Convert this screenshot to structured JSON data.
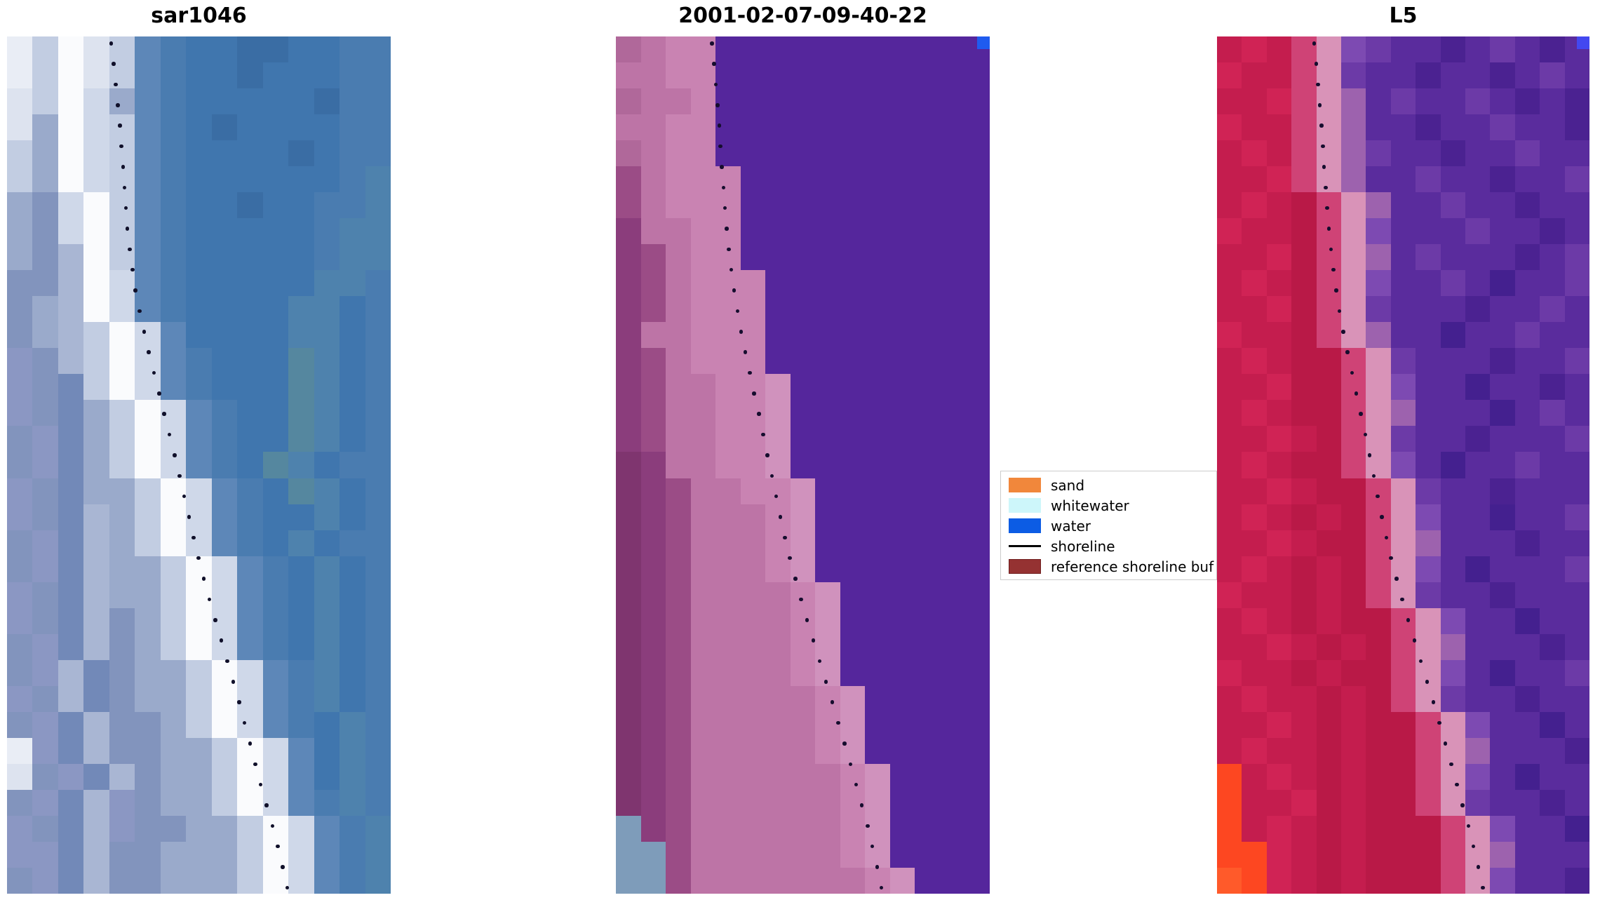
{
  "panels": [
    {
      "title": "sar1046",
      "cols": 15,
      "rows": 33,
      "palette": {
        "A": "#e9edf5",
        "B": "#dde3ef",
        "C": "#fafbfd",
        "D": "#c2cde2",
        "E": "#9aaacb",
        "F": "#8294bd",
        "G": "#8b97c3",
        "H": "#5d87b8",
        "I": "#4a7cb0",
        "J": "#4076ae",
        "K": "#3a6da4",
        "L": "#4e82ad",
        "M": "#55879f",
        "N": "#cfd8e9",
        "O": "#a9b6d3",
        "P": "#7289b8"
      },
      "grid": [
        "ADCBDHIJJKKJJII",
        "ADCBDHIJJKJJJII",
        "BDCNEHIJJJJJKII",
        "BECNDHIJKJJJJII",
        "DECNDHIJJJJKJII",
        "DECNDHIJJJJJJIL",
        "EFNCDHIJJKJJIIL",
        "EFNCDHIJJJJJILL",
        "EFOCDHIJJJJJILL",
        "FFOCNHIJJJJJLLI",
        "FEOCNHIJJJJLLJI",
        "FEODCNHJJJJLLJI",
        "GFODCNHIJJJMLJI",
        "GFPDCNHIJJJMLJI",
        "GFPEDCNHIJJMLJI",
        "FGPEDCNHIJJMLJI",
        "FGPEDCNHIJMLJII",
        "GFPEEDCNHIJMLJI",
        "GFPOEDCNHIJJLJI",
        "FGPOEDCNHIJLJII",
        "FGPOEEDCNHIJLJI",
        "GFPOEEDCNHIJLJI",
        "GFPOFEDCNHIJLJI",
        "FGPOFEDCNHIJLJI",
        "FGOPFEEDCNHILJI",
        "GFOPFEEDCNHILJI",
        "FGPOFFEDCNHIJLI",
        "AGPOFFEEDCNHJLI",
        "BFGPOFEEDCNHJLI",
        "FGPOGFEEDCNHILI",
        "GFPOGFFEEDCNHIL",
        "GGPOFFEEEDCNHIL",
        "FGPOFFEEEDCNHIL"
      ],
      "shoreline_color": "#10102a",
      "dot_count": 42,
      "shoreline_path": [
        [
          0.27,
          0.0
        ],
        [
          0.283,
          0.07
        ],
        [
          0.297,
          0.14
        ],
        [
          0.315,
          0.22
        ],
        [
          0.34,
          0.3
        ],
        [
          0.37,
          0.37
        ],
        [
          0.405,
          0.44
        ],
        [
          0.44,
          0.5
        ],
        [
          0.475,
          0.56
        ],
        [
          0.51,
          0.62
        ],
        [
          0.545,
          0.68
        ],
        [
          0.58,
          0.74
        ],
        [
          0.62,
          0.81
        ],
        [
          0.66,
          0.875
        ],
        [
          0.7,
          0.93
        ],
        [
          0.735,
          0.99
        ]
      ],
      "corner_square": null
    },
    {
      "title": "2001-02-07-09-40-22",
      "cols": 15,
      "rows": 33,
      "palette": {
        "a": "#55269c",
        "b": "#b0689a",
        "c": "#bd74a6",
        "d": "#c983b2",
        "e": "#9b4c86",
        "f": "#8b3d7c",
        "g": "#d092bd",
        "h": "#7f356f",
        "i": "#7e9cba"
      },
      "grid": [
        "bcddaaaaaaaaaaa",
        "ccddaaaaaaaaaaa",
        "bccdaaaaaaaaaaa",
        "ccddaaaaaaaaaaa",
        "bcddaaaaaaaaaaa",
        "ecdddaaaaaaaaaa",
        "ecdddaaaaaaaaaa",
        "fccddaaaaaaaaaa",
        "fecddaaaaaaaaaa",
        "fecdddaaaaaaaaa",
        "fecdddaaaaaaaaa",
        "fccdddaaaaaaaaa",
        "fecdddaaaaaaaaa",
        "feccddgaaaaaaaa",
        "feccddgaaaaaaaa",
        "feccddgaaaaaaaa",
        "hfccddgaaaaaaaa",
        "hfeccddgaaaaaaa",
        "hfecccdgaaaaaaa",
        "hfecccdgaaaaaaa",
        "hfecccdgaaaaaaa",
        "hfeccccdgaaaaaa",
        "hfeccccdgaaaaaa",
        "hfeccccdgaaaaaa",
        "hfeccccdgaaaaaa",
        "hfecccccdgaaaaa",
        "hfecccccdgaaaaa",
        "hfecccccdgaaaaa",
        "hfeccccccdgaaaa",
        "hfeccccccdgaaaa",
        "ifeccccccdgaaaa",
        "iieccccccdgaaaa",
        "iiecccccccdgaaa"
      ],
      "shoreline_color": "#160d2e",
      "dot_count": 42,
      "shoreline_path": [
        [
          0.256,
          0.0
        ],
        [
          0.266,
          0.07
        ],
        [
          0.28,
          0.15
        ],
        [
          0.298,
          0.22
        ],
        [
          0.318,
          0.29
        ],
        [
          0.34,
          0.355
        ],
        [
          0.368,
          0.42
        ],
        [
          0.4,
          0.485
        ],
        [
          0.435,
          0.55
        ],
        [
          0.47,
          0.61
        ],
        [
          0.508,
          0.67
        ],
        [
          0.548,
          0.735
        ],
        [
          0.59,
          0.8
        ],
        [
          0.635,
          0.865
        ],
        [
          0.678,
          0.925
        ],
        [
          0.715,
          0.99
        ]
      ],
      "corner_square": "#1f5bef"
    },
    {
      "title": "L5",
      "cols": 15,
      "rows": 33,
      "palette": {
        "A": "#c41d4e",
        "B": "#d02355",
        "C": "#b91947",
        "D": "#cf4376",
        "E": "#d993b8",
        "N": "#9d62ae",
        "G": "#5a2c9d",
        "H": "#4b2291",
        "I": "#6c3aa7",
        "J": "#7d4ab2",
        "K": "#44208f",
        "L": "#fd4721",
        "M": "#ff5a2a"
      },
      "grid": [
        "ABADEJIGGHGIGHG",
        "BAADEIGGHGGHGIG",
        "AABDENGIGGIGHGH",
        "BAADENGGHGGIGGH",
        "ABADENIGGHGGIGG",
        "AABDENGGIGGHGGI",
        "ABACDENGGIGGHGG",
        "BAACDEJGGGIGGHG",
        "AABCDENGIGGGHGI",
        "ABACDEJGGIGKGGI",
        "AABCDEIGGGHGGIG",
        "BAACDENGGKGGIGG",
        "ABACCDEIGGGHGGI",
        "AABCCDEJGGKGGHG",
        "ABACCDENGGGKGIG",
        "AABACDEIGGHGGGI",
        "ABACCDEJGKGGIGG",
        "AABACCDEIGGHGGG",
        "ABACACDEJGGKGGI",
        "AABACCDENGGGHGG",
        "ABACACDEJGKGGGI",
        "BAACACDEIGGHGGG",
        "ABACACCDEJGGKGG",
        "AABACACDENGGGHG",
        "BAACACCDEJGKGGI",
        "ABAACACDEIGGHGG",
        "AABACACCDEJGGKG",
        "ABAACACCDENGGGH",
        "LABACACCDEJGKGG",
        "LAABCACCDEIGGHG",
        "LABACACCCDEJGGK",
        "LLBACACCCDENGGG",
        "MLBACACCCDEJGGH"
      ],
      "shoreline_color": "#160d2e",
      "dot_count": 42,
      "shoreline_path": [
        [
          0.26,
          0.0
        ],
        [
          0.27,
          0.07
        ],
        [
          0.284,
          0.15
        ],
        [
          0.302,
          0.22
        ],
        [
          0.322,
          0.29
        ],
        [
          0.344,
          0.355
        ],
        [
          0.372,
          0.42
        ],
        [
          0.404,
          0.485
        ],
        [
          0.438,
          0.55
        ],
        [
          0.472,
          0.61
        ],
        [
          0.51,
          0.67
        ],
        [
          0.55,
          0.735
        ],
        [
          0.592,
          0.8
        ],
        [
          0.636,
          0.865
        ],
        [
          0.68,
          0.925
        ],
        [
          0.718,
          0.99
        ]
      ],
      "corner_square": "#4348f0"
    }
  ],
  "legend": {
    "items": [
      {
        "label": "sand",
        "type": "patch",
        "color": "#f1873b"
      },
      {
        "label": "whitewater",
        "type": "patch",
        "color": "#cdf6fa"
      },
      {
        "label": "water",
        "type": "patch",
        "color": "#0c5ce4"
      },
      {
        "label": "shoreline",
        "type": "line",
        "color": "#000000"
      },
      {
        "label": "reference shoreline buf",
        "type": "patch",
        "color": "#953232",
        "edge": "#701f1f"
      }
    ]
  },
  "chart_data": {
    "type": "image",
    "panels": [
      {
        "title": "sar1046",
        "description": "SAR backscatter raster, blue tones with bright white diagonal beach band running from upper-left toward lower-right; dotted black detected shoreline overlay"
      },
      {
        "title": "2001-02-07-09-40-22",
        "description": "classification overlay: flat purple water region right of shoreline, pink/maroon reference-shoreline-buffer tint over land, small grey-blue un-buffered corner bottom-left, single blue water pixel patch top-right"
      },
      {
        "title": "L5",
        "description": "Landsat 5 false-colour raster: crimson land, noisy purple water, pale pink surf band along dotted shoreline, bright orange-red corner pixels bottom-left, blue pixel patch top-right"
      }
    ],
    "legend_entries": [
      "sand",
      "whitewater",
      "water",
      "shoreline",
      "reference shoreline buffer"
    ],
    "legend_visible_labels": [
      "sand",
      "whitewater",
      "water",
      "shoreline",
      "reference shoreline buf"
    ],
    "shoreline_trend": "dotted line descends from ~26% of panel width at top to ~73% at bottom in all three panels"
  }
}
